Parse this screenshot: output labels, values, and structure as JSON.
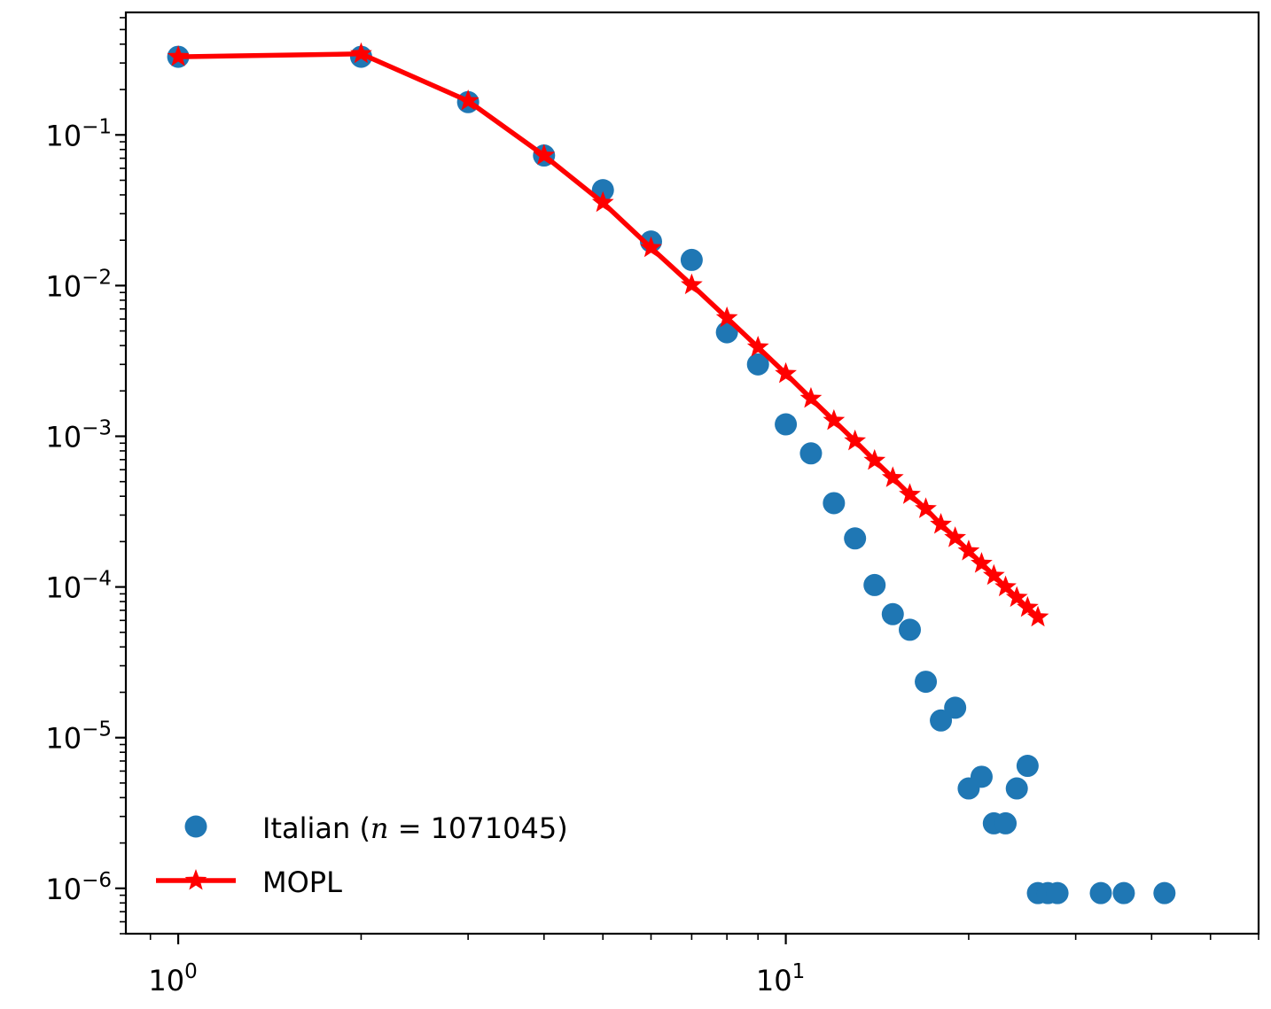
{
  "chart_data": {
    "type": "scatter",
    "x_scale": "log",
    "y_scale": "log",
    "xlim": [
      0.82,
      60
    ],
    "ylim": [
      5e-07,
      0.65
    ],
    "grid": false,
    "legend_position": "lower-left",
    "x_ticks": [
      {
        "base": "10",
        "exp": "0",
        "value": 1
      },
      {
        "base": "10",
        "exp": "1",
        "value": 10
      }
    ],
    "y_ticks": [
      {
        "base": "10",
        "exp": "−1",
        "value": 0.1
      },
      {
        "base": "10",
        "exp": "−2",
        "value": 0.01
      },
      {
        "base": "10",
        "exp": "−3",
        "value": 0.001
      },
      {
        "base": "10",
        "exp": "−4",
        "value": 0.0001
      },
      {
        "base": "10",
        "exp": "−5",
        "value": 1e-05
      },
      {
        "base": "10",
        "exp": "−6",
        "value": 1e-06
      }
    ],
    "series": [
      {
        "name": "Italian",
        "name_prefix": "Italian (",
        "name_var": "n",
        "name_eq": " = 1071045)",
        "style": "markers",
        "marker": "circle",
        "color": "#1f77b4",
        "points": [
          [
            1,
            0.33
          ],
          [
            2,
            0.33
          ],
          [
            3,
            0.165
          ],
          [
            4,
            0.073
          ],
          [
            5,
            0.043
          ],
          [
            6,
            0.0196
          ],
          [
            7,
            0.0148
          ],
          [
            8,
            0.0049
          ],
          [
            9,
            0.003
          ],
          [
            10,
            0.0012
          ],
          [
            11,
            0.00077
          ],
          [
            12,
            0.00036
          ],
          [
            13,
            0.00021
          ],
          [
            14,
            0.000103
          ],
          [
            15,
            6.6e-05
          ],
          [
            16,
            5.2e-05
          ],
          [
            17,
            2.35e-05
          ],
          [
            18,
            1.3e-05
          ],
          [
            19,
            1.58e-05
          ],
          [
            20,
            4.6e-06
          ],
          [
            21,
            5.5e-06
          ],
          [
            22,
            2.7e-06
          ],
          [
            23,
            2.7e-06
          ],
          [
            24,
            4.6e-06
          ],
          [
            25,
            6.5e-06
          ],
          [
            26,
            9.3e-07
          ],
          [
            27,
            9.3e-07
          ],
          [
            28,
            9.3e-07
          ],
          [
            33,
            9.3e-07
          ],
          [
            36,
            9.3e-07
          ],
          [
            42,
            9.3e-07
          ]
        ]
      },
      {
        "name": "MOPL",
        "style": "line-markers",
        "marker": "star",
        "color": "#ff0000",
        "points": [
          [
            1,
            0.33
          ],
          [
            2,
            0.345
          ],
          [
            3,
            0.168
          ],
          [
            4,
            0.073
          ],
          [
            5,
            0.0355
          ],
          [
            6,
            0.0178
          ],
          [
            7,
            0.0101
          ],
          [
            8,
            0.0061
          ],
          [
            9,
            0.0039
          ],
          [
            10,
            0.0026
          ],
          [
            11,
            0.00178
          ],
          [
            12,
            0.00127
          ],
          [
            13,
            0.00093
          ],
          [
            14,
            0.00069
          ],
          [
            15,
            0.00053
          ],
          [
            16,
            0.00041
          ],
          [
            17,
            0.00033
          ],
          [
            18,
            0.00026
          ],
          [
            19,
            0.000212
          ],
          [
            20,
            0.000173
          ],
          [
            21,
            0.000143
          ],
          [
            22,
            0.000119
          ],
          [
            23,
            0.0001
          ],
          [
            24,
            8.5e-05
          ],
          [
            25,
            7.3e-05
          ],
          [
            26,
            6.3e-05
          ]
        ]
      }
    ]
  }
}
